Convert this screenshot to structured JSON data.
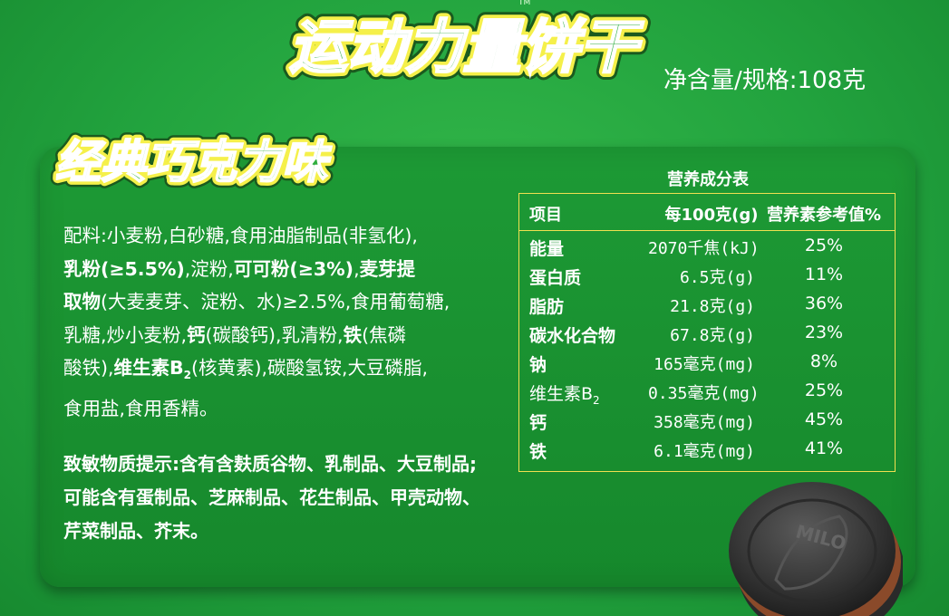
{
  "header": {
    "trademark": "TM",
    "title": "运动力量饼干",
    "net_content": "净含量/规格:108克"
  },
  "flavor": "经典巧克力味",
  "ingredients": {
    "l1": "配料:小麦粉,白砂糖,食用油脂制品(非氢化),",
    "l2_a": "乳粉(≥5.5%)",
    "l2_b": ",淀粉,",
    "l2_c": "可可粉(≥3%)",
    "l2_d": ",",
    "l2_e": "麦芽提",
    "l3_a": "取物",
    "l3_b": "(大麦麦芽、淀粉、水)≥2.5%,食用葡萄糖,",
    "l4_a": "乳糖,炒小麦粉,",
    "l4_b": "钙",
    "l4_c": "(碳酸钙),乳清粉,",
    "l4_d": "铁",
    "l4_e": "(焦磷",
    "l5_a": "酸铁),",
    "l5_b": "维生素B",
    "l5_sub": "2",
    "l5_c": "(核黄素),碳酸氢铵,大豆磷脂,",
    "l6": "食用盐,食用香精。"
  },
  "allergen": {
    "l1": "致敏物质提示:含有含麸质谷物、乳制品、大豆制品;",
    "l2": "可能含有蛋制品、芝麻制品、花生制品、甲壳动物、",
    "l3": "芹菜制品、芥末。"
  },
  "nutrition": {
    "title": "营养成分表",
    "headers": [
      "项目",
      "每100克(g)",
      "营养素参考值%"
    ],
    "rows": [
      {
        "item": "能量",
        "value": "2070千焦(kJ)",
        "nrv": "25%"
      },
      {
        "item": "蛋白质",
        "value": "6.5克(g)",
        "nrv": "11%"
      },
      {
        "item": "脂肪",
        "value": "21.8克(g)",
        "nrv": "36%"
      },
      {
        "item": "碳水化合物",
        "value": "67.8克(g)",
        "nrv": "23%"
      },
      {
        "item": "钠",
        "value": "165毫克(mg)",
        "nrv": "8%"
      },
      {
        "item": "维生素B",
        "item_sub": "2",
        "value": "0.35毫克(mg)",
        "nrv": "25%"
      },
      {
        "item": "钙",
        "value": "358毫克(mg)",
        "nrv": "45%"
      },
      {
        "item": "铁",
        "value": "6.1毫克(mg)",
        "nrv": "41%"
      }
    ]
  },
  "cookie_logo_text": "MILO",
  "colors": {
    "background": "#22a33e",
    "title_fill": "#2fae3e",
    "title_outline": "#f5f04a",
    "table_border": "#f0e050",
    "cookie": "#3a3a3a"
  }
}
